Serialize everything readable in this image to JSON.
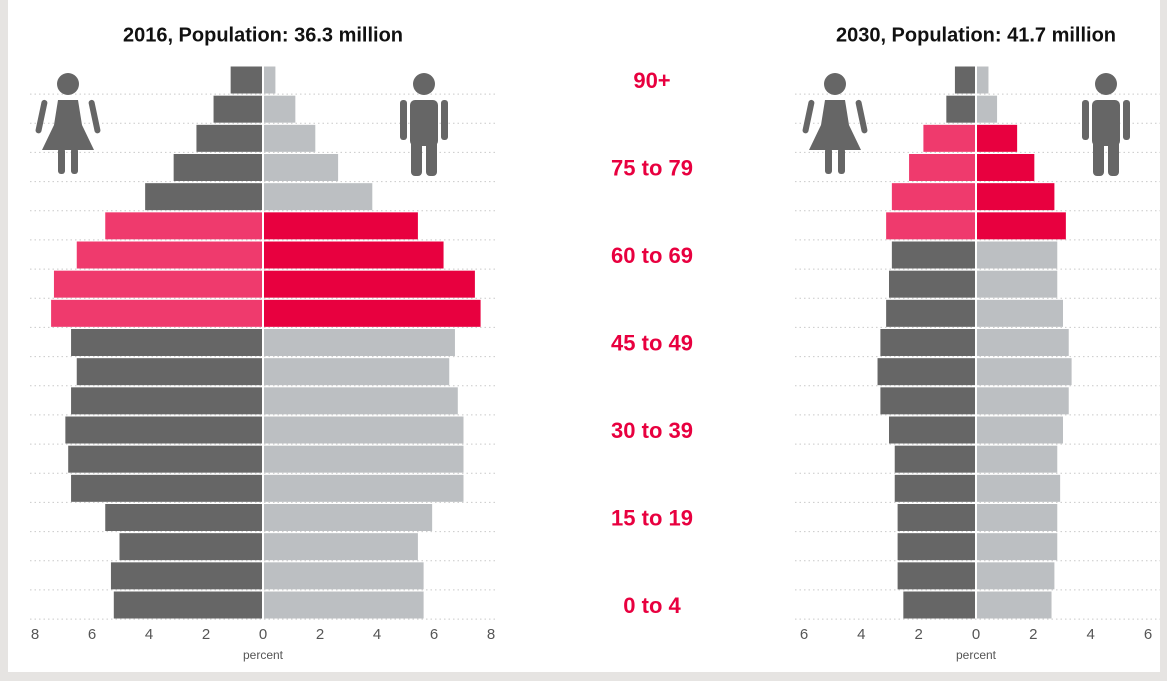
{
  "chart_data": [
    {
      "type": "pyramid",
      "title": "2016, Population: 36.3 million",
      "xlabel": "percent",
      "categories": [
        "90+",
        null,
        null,
        "75 to 79",
        null,
        null,
        "60 to 69",
        null,
        null,
        "45 to 49",
        null,
        null,
        "30 to 39",
        null,
        null,
        "15 to 19",
        null,
        null,
        "0 to 4"
      ],
      "xlim": [
        -8,
        8
      ],
      "xticks": [
        {
          "value": -8,
          "label": "8"
        },
        {
          "value": -6,
          "label": "6"
        },
        {
          "value": -4,
          "label": "4"
        },
        {
          "value": -2,
          "label": "2"
        },
        0,
        2,
        4,
        6,
        8
      ],
      "grid": true,
      "series": [
        {
          "side": "left",
          "values": [
            1.1,
            1.7,
            2.3,
            3.1,
            4.1,
            5.5,
            6.5,
            7.3,
            7.4,
            6.7,
            6.5,
            6.7,
            6.9,
            6.8,
            6.7,
            5.5,
            5.0,
            5.3,
            5.2
          ],
          "colors": [
            "#666666",
            "#666666",
            "#666666",
            "#666666",
            "#666666",
            "#ef3a6d",
            "#ef3a6d",
            "#ef3a6d",
            "#ef3a6d",
            "#666666",
            "#666666",
            "#666666",
            "#666666",
            "#666666",
            "#666666",
            "#666666",
            "#666666",
            "#666666",
            "#666666"
          ]
        },
        {
          "side": "right",
          "values": [
            0.4,
            1.1,
            1.8,
            2.6,
            3.8,
            5.4,
            6.3,
            7.4,
            7.6,
            6.7,
            6.5,
            6.8,
            7.0,
            7.0,
            7.0,
            5.9,
            5.4,
            5.6,
            5.6
          ],
          "colors": [
            "#bcbfc2",
            "#bcbfc2",
            "#bcbfc2",
            "#bcbfc2",
            "#bcbfc2",
            "#e8003f",
            "#e8003f",
            "#e8003f",
            "#e8003f",
            "#bcbfc2",
            "#bcbfc2",
            "#bcbfc2",
            "#bcbfc2",
            "#bcbfc2",
            "#bcbfc2",
            "#bcbfc2",
            "#bcbfc2",
            "#bcbfc2",
            "#bcbfc2"
          ]
        }
      ]
    },
    {
      "type": "pyramid",
      "title": "2030, Population: 41.7 million",
      "xlabel": "percent",
      "xlim": [
        -6,
        6
      ],
      "xticks": [
        {
          "value": -6,
          "label": "6"
        },
        {
          "value": -4,
          "label": "4"
        },
        {
          "value": -2,
          "label": "2"
        },
        0,
        2,
        4,
        6
      ],
      "grid": true,
      "series": [
        {
          "side": "left",
          "values": [
            0.7,
            1.0,
            1.8,
            2.3,
            2.9,
            3.1,
            2.9,
            3.0,
            3.1,
            3.3,
            3.4,
            3.3,
            3.0,
            2.8,
            2.8,
            2.7,
            2.7,
            2.7,
            2.5
          ],
          "colors": [
            "#666666",
            "#666666",
            "#ef3a6d",
            "#ef3a6d",
            "#ef3a6d",
            "#ef3a6d",
            "#666666",
            "#666666",
            "#666666",
            "#666666",
            "#666666",
            "#666666",
            "#666666",
            "#666666",
            "#666666",
            "#666666",
            "#666666",
            "#666666",
            "#666666"
          ]
        },
        {
          "side": "right",
          "values": [
            0.4,
            0.7,
            1.4,
            2.0,
            2.7,
            3.1,
            2.8,
            2.8,
            3.0,
            3.2,
            3.3,
            3.2,
            3.0,
            2.8,
            2.9,
            2.8,
            2.8,
            2.7,
            2.6
          ],
          "colors": [
            "#bcbfc2",
            "#bcbfc2",
            "#e8003f",
            "#e8003f",
            "#e8003f",
            "#e8003f",
            "#bcbfc2",
            "#bcbfc2",
            "#bcbfc2",
            "#bcbfc2",
            "#bcbfc2",
            "#bcbfc2",
            "#bcbfc2",
            "#bcbfc2",
            "#bcbfc2",
            "#bcbfc2",
            "#bcbfc2",
            "#bcbfc2",
            "#bcbfc2"
          ]
        }
      ]
    }
  ]
}
